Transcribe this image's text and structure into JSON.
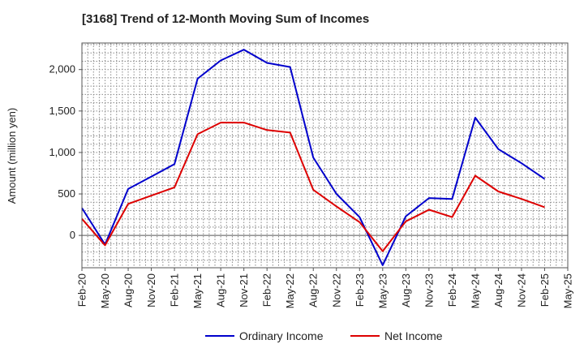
{
  "title": "[3168]  Trend of 12-Month Moving Sum of Incomes",
  "chart_data": {
    "type": "line",
    "title": "[3168]  Trend of 12-Month Moving Sum of Incomes",
    "ylabel": "Amount (million yen)",
    "xlabel": "",
    "x": [
      "Feb-20",
      "May-20",
      "Aug-20",
      "Nov-20",
      "Feb-21",
      "May-21",
      "Aug-21",
      "Nov-21",
      "Feb-22",
      "May-22",
      "Aug-22",
      "Nov-22",
      "Feb-23",
      "May-23",
      "Aug-23",
      "Nov-23",
      "Feb-24",
      "May-24",
      "Aug-24",
      "Nov-24",
      "Feb-25",
      "May-25"
    ],
    "y_ticks": [
      0,
      500,
      1000,
      1500,
      2000
    ],
    "y_tick_labels": [
      "0",
      "500",
      "1,000",
      "1,500",
      "2,000"
    ],
    "ylim": [
      -390,
      2320
    ],
    "grid": true,
    "legend_position": "bottom",
    "series": [
      {
        "name": "Ordinary Income",
        "color": "#0000cc",
        "values": [
          330,
          -110,
          560,
          710,
          860,
          1890,
          2110,
          2240,
          2080,
          2030,
          940,
          500,
          220,
          -360,
          230,
          450,
          440,
          1420,
          1040,
          870,
          680,
          null
        ]
      },
      {
        "name": "Net Income",
        "color": "#dd0000",
        "values": [
          200,
          -120,
          380,
          480,
          580,
          1220,
          1360,
          1360,
          1270,
          1240,
          550,
          350,
          160,
          -190,
          170,
          310,
          220,
          720,
          530,
          440,
          340,
          null
        ]
      }
    ]
  }
}
